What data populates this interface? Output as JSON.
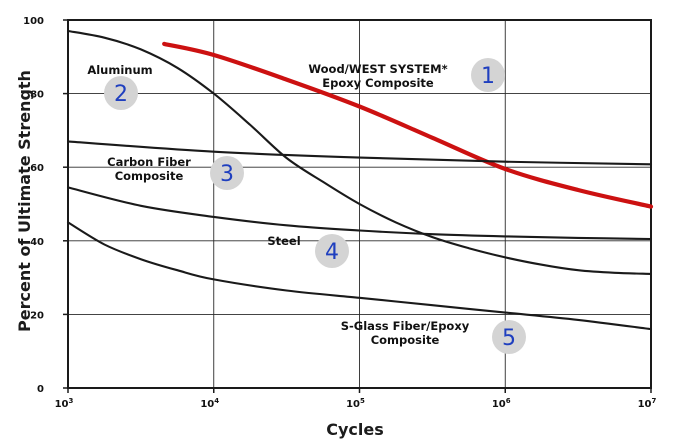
{
  "chart_data": {
    "type": "line",
    "title": "",
    "xlabel": "Cycles",
    "ylabel": "Percent of Ultimate Strength",
    "xscale": "log10",
    "xlim": [
      3,
      7
    ],
    "ylim": [
      0,
      100
    ],
    "grid": true,
    "x_ticks": [
      {
        "base": "10",
        "exp": "3"
      },
      {
        "base": "10",
        "exp": "4"
      },
      {
        "base": "10",
        "exp": "5"
      },
      {
        "base": "10",
        "exp": "6"
      },
      {
        "base": "10",
        "exp": "7"
      }
    ],
    "y_ticks": [
      "0",
      "20",
      "40",
      "60",
      "80",
      "100"
    ],
    "series": [
      {
        "id": 1,
        "name": "Wood/WEST SYSTEM* Epoxy Composite",
        "label_lines": [
          "Wood/WEST SYSTEM*",
          "Epoxy Composite"
        ],
        "color": "#cc1111",
        "bold": true,
        "x": [
          3.66,
          4.0,
          4.5,
          5.0,
          5.5,
          6.0,
          6.5,
          7.0
        ],
        "y": [
          93.5,
          90.5,
          83.8,
          76.5,
          68.0,
          59.5,
          53.8,
          49.3
        ]
      },
      {
        "id": 2,
        "name": "Aluminum",
        "label_lines": [
          "Aluminum"
        ],
        "color": "#1a1a1a",
        "bold": false,
        "x": [
          3.0,
          3.25,
          3.5,
          3.75,
          4.0,
          4.25,
          4.5,
          4.75,
          5.0,
          5.25,
          5.5,
          5.75,
          6.0,
          6.25,
          6.5,
          6.75,
          7.0
        ],
        "y": [
          97.0,
          95.2,
          92.0,
          87.0,
          80.0,
          71.5,
          62.5,
          56.0,
          50.0,
          45.0,
          41.0,
          38.0,
          35.5,
          33.5,
          32.0,
          31.3,
          31.0
        ]
      },
      {
        "id": 3,
        "name": "Carbon Fiber Composite",
        "label_lines": [
          "Carbon Fiber",
          "Composite"
        ],
        "color": "#1a1a1a",
        "bold": false,
        "x": [
          3.0,
          4.0,
          5.0,
          6.0,
          7.0
        ],
        "y": [
          67.0,
          64.2,
          62.6,
          61.5,
          60.8
        ]
      },
      {
        "id": 4,
        "name": "Steel",
        "label_lines": [
          "Steel"
        ],
        "color": "#1a1a1a",
        "bold": false,
        "x": [
          3.0,
          3.5,
          4.0,
          4.5,
          5.0,
          5.5,
          6.0,
          6.5,
          7.0
        ],
        "y": [
          54.5,
          49.5,
          46.5,
          44.2,
          42.8,
          41.8,
          41.2,
          40.8,
          40.5
        ]
      },
      {
        "id": 5,
        "name": "S-Glass Fiber/Epoxy Composite",
        "label_lines": [
          "S-Glass Fiber/Epoxy",
          "Composite"
        ],
        "color": "#1a1a1a",
        "bold": false,
        "x": [
          3.0,
          3.25,
          3.5,
          3.75,
          4.0,
          4.5,
          5.0,
          5.5,
          6.0,
          6.5,
          7.0
        ],
        "y": [
          45.0,
          39.0,
          35.0,
          32.0,
          29.5,
          26.5,
          24.5,
          22.5,
          20.5,
          18.5,
          16.0
        ]
      }
    ],
    "badges": [
      "1",
      "2",
      "3",
      "4",
      "5"
    ]
  }
}
